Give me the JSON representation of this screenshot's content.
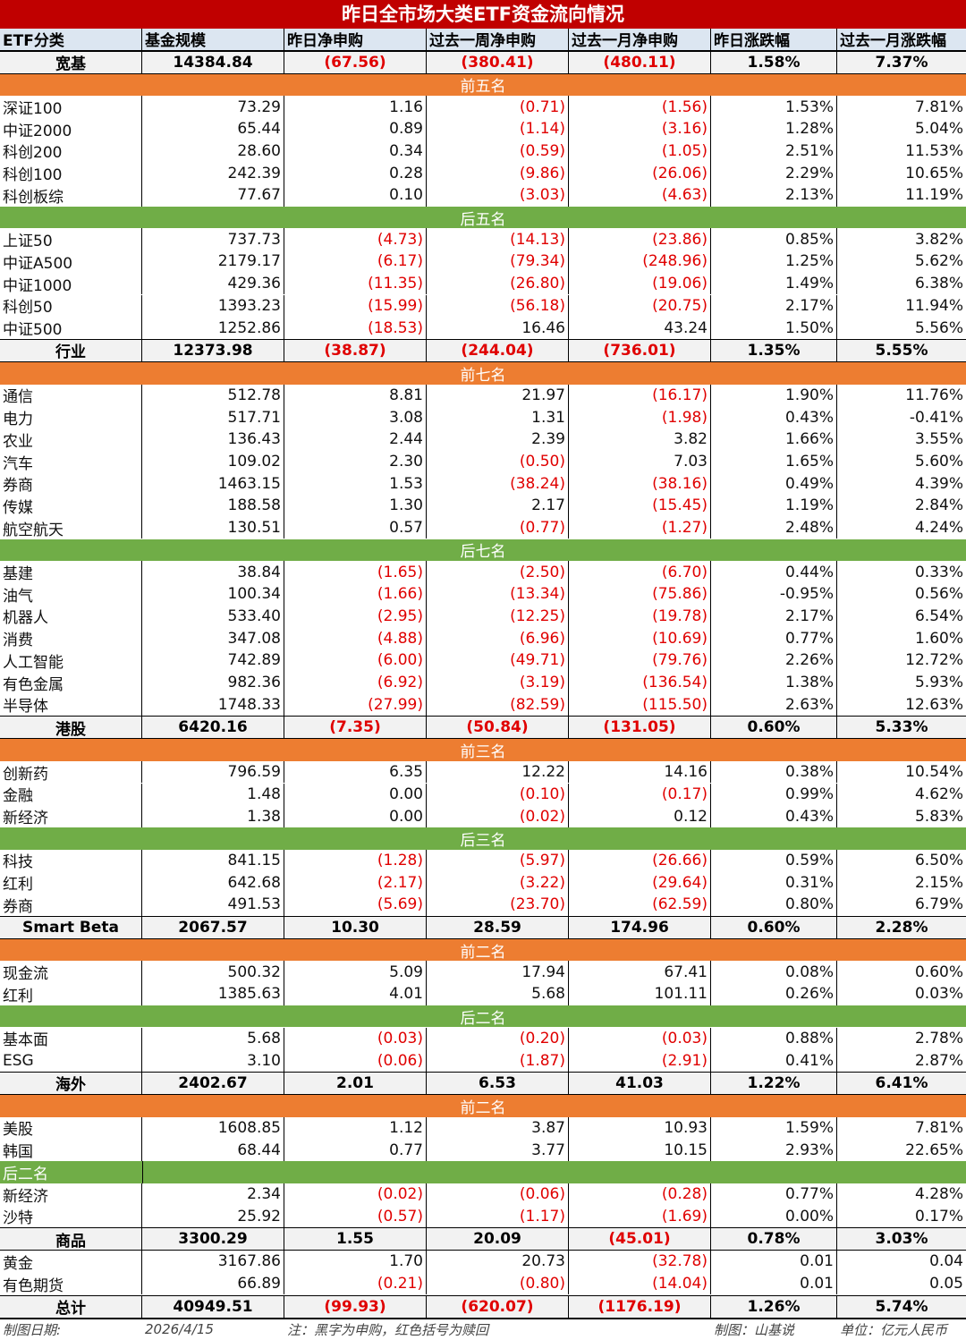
{
  "title": "昨日全市场大类ETF资金流向情况",
  "headers": [
    "ETF分类",
    "基金规模",
    "昨日净申购",
    "过去一周净申购",
    "过去一月净申购",
    "昨日涨跌幅",
    "过去一月涨跌幅"
  ],
  "groups": [
    {
      "summary": [
        "宽基",
        "14384.84",
        "(67.56)",
        "(380.41)",
        "(480.11)",
        "1.58%",
        "7.37%"
      ],
      "sections": [
        {
          "label": "前五名",
          "color": "orange",
          "rows": [
            [
              "深证100",
              "73.29",
              "1.16",
              "(0.71)",
              "(1.56)",
              "1.53%",
              "7.81%"
            ],
            [
              "中证2000",
              "65.44",
              "0.89",
              "(1.14)",
              "(3.16)",
              "1.28%",
              "5.04%"
            ],
            [
              "科创200",
              "28.60",
              "0.34",
              "(0.59)",
              "(1.05)",
              "2.51%",
              "11.53%"
            ],
            [
              "科创100",
              "242.39",
              "0.28",
              "(9.86)",
              "(26.06)",
              "2.29%",
              "10.65%"
            ],
            [
              "科创板综",
              "77.67",
              "0.10",
              "(3.03)",
              "(4.63)",
              "2.13%",
              "11.19%"
            ]
          ]
        },
        {
          "label": "后五名",
          "color": "green",
          "rows": [
            [
              "上证50",
              "737.73",
              "(4.73)",
              "(14.13)",
              "(23.86)",
              "0.85%",
              "3.82%"
            ],
            [
              "中证A500",
              "2179.17",
              "(6.17)",
              "(79.34)",
              "(248.96)",
              "1.25%",
              "5.62%"
            ],
            [
              "中证1000",
              "429.36",
              "(11.35)",
              "(26.80)",
              "(19.06)",
              "1.49%",
              "6.38%"
            ],
            [
              "科创50",
              "1393.23",
              "(15.99)",
              "(56.18)",
              "(20.75)",
              "2.17%",
              "11.94%"
            ],
            [
              "中证500",
              "1252.86",
              "(18.53)",
              "16.46",
              "43.24",
              "1.50%",
              "5.56%"
            ]
          ]
        }
      ]
    },
    {
      "summary": [
        "行业",
        "12373.98",
        "(38.87)",
        "(244.04)",
        "(736.01)",
        "1.35%",
        "5.55%"
      ],
      "sections": [
        {
          "label": "前七名",
          "color": "orange",
          "rows": [
            [
              "通信",
              "512.78",
              "8.81",
              "21.97",
              "(16.17)",
              "1.90%",
              "11.76%"
            ],
            [
              "电力",
              "517.71",
              "3.08",
              "1.31",
              "(1.98)",
              "0.43%",
              "-0.41%"
            ],
            [
              "农业",
              "136.43",
              "2.44",
              "2.39",
              "3.82",
              "1.66%",
              "3.55%"
            ],
            [
              "汽车",
              "109.02",
              "2.30",
              "(0.50)",
              "7.03",
              "1.65%",
              "5.60%"
            ],
            [
              "券商",
              "1463.15",
              "1.53",
              "(38.24)",
              "(38.16)",
              "0.49%",
              "4.39%"
            ],
            [
              "传媒",
              "188.58",
              "1.30",
              "2.17",
              "(15.45)",
              "1.19%",
              "2.84%"
            ],
            [
              "航空航天",
              "130.51",
              "0.57",
              "(0.77)",
              "(1.27)",
              "2.48%",
              "4.24%"
            ]
          ]
        },
        {
          "label": "后七名",
          "color": "green",
          "rows": [
            [
              "基建",
              "38.84",
              "(1.65)",
              "(2.50)",
              "(6.70)",
              "0.44%",
              "0.33%"
            ],
            [
              "油气",
              "100.34",
              "(1.66)",
              "(13.34)",
              "(75.86)",
              "-0.95%",
              "0.56%"
            ],
            [
              "机器人",
              "533.40",
              "(2.95)",
              "(12.25)",
              "(19.78)",
              "2.17%",
              "6.54%"
            ],
            [
              "消费",
              "347.08",
              "(4.88)",
              "(6.96)",
              "(10.69)",
              "0.77%",
              "1.60%"
            ],
            [
              "人工智能",
              "742.89",
              "(6.00)",
              "(49.71)",
              "(79.76)",
              "2.26%",
              "12.72%"
            ],
            [
              "有色金属",
              "982.36",
              "(6.92)",
              "(3.19)",
              "(136.54)",
              "1.38%",
              "5.93%"
            ],
            [
              "半导体",
              "1748.33",
              "(27.99)",
              "(82.59)",
              "(115.50)",
              "2.63%",
              "12.63%"
            ]
          ]
        }
      ]
    },
    {
      "summary": [
        "港股",
        "6420.16",
        "(7.35)",
        "(50.84)",
        "(131.05)",
        "0.60%",
        "5.33%"
      ],
      "sections": [
        {
          "label": "前三名",
          "color": "orange",
          "rows": [
            [
              "创新药",
              "796.59",
              "6.35",
              "12.22",
              "14.16",
              "0.38%",
              "10.54%"
            ],
            [
              "金融",
              "1.48",
              "0.00",
              "(0.10)",
              "(0.17)",
              "0.99%",
              "4.62%"
            ],
            [
              "新经济",
              "1.38",
              "0.00",
              "(0.02)",
              "0.12",
              "0.43%",
              "5.83%"
            ]
          ]
        },
        {
          "label": "后三名",
          "color": "green",
          "rows": [
            [
              "科技",
              "841.15",
              "(1.28)",
              "(5.97)",
              "(26.66)",
              "0.59%",
              "6.50%"
            ],
            [
              "红利",
              "642.68",
              "(2.17)",
              "(3.22)",
              "(29.64)",
              "0.31%",
              "2.15%"
            ],
            [
              "券商",
              "491.53",
              "(5.69)",
              "(23.70)",
              "(62.59)",
              "0.80%",
              "6.79%"
            ]
          ]
        }
      ]
    },
    {
      "summary": [
        "Smart Beta",
        "2067.57",
        "10.30",
        "28.59",
        "174.96",
        "0.60%",
        "2.28%"
      ],
      "sections": [
        {
          "label": "前二名",
          "color": "orange",
          "rows": [
            [
              "现金流",
              "500.32",
              "5.09",
              "17.94",
              "67.41",
              "0.08%",
              "0.60%"
            ],
            [
              "红利",
              "1385.63",
              "4.01",
              "5.68",
              "101.11",
              "0.26%",
              "0.03%"
            ]
          ]
        },
        {
          "label": "后二名",
          "color": "green",
          "rows": [
            [
              "基本面",
              "5.68",
              "(0.03)",
              "(0.20)",
              "(0.03)",
              "0.88%",
              "2.78%"
            ],
            [
              "ESG",
              "3.10",
              "(0.06)",
              "(1.87)",
              "(2.91)",
              "0.41%",
              "2.87%"
            ]
          ]
        }
      ]
    },
    {
      "summary": [
        "海外",
        "2402.67",
        "2.01",
        "6.53",
        "41.03",
        "1.22%",
        "6.41%"
      ],
      "sections": [
        {
          "label": "前二名",
          "color": "orange",
          "rows": [
            [
              "美股",
              "1608.85",
              "1.12",
              "3.87",
              "10.93",
              "1.59%",
              "7.81%"
            ],
            [
              "韩国",
              "68.44",
              "0.77",
              "3.77",
              "10.15",
              "2.93%",
              "22.65%"
            ]
          ]
        },
        {
          "label": "后二名",
          "color": "green-left",
          "rows": [
            [
              "新经济",
              "2.34",
              "(0.02)",
              "(0.06)",
              "(0.28)",
              "0.77%",
              "4.28%"
            ],
            [
              "沙特",
              "25.92",
              "(0.57)",
              "(1.17)",
              "(1.69)",
              "0.00%",
              "0.17%"
            ]
          ]
        }
      ]
    },
    {
      "summary": [
        "商品",
        "3300.29",
        "1.55",
        "20.09",
        "(45.01)",
        "0.78%",
        "3.03%"
      ],
      "sections": [
        {
          "label": "",
          "color": "none",
          "rows": [
            [
              "黄金",
              "3167.86",
              "1.70",
              "20.73",
              "(32.78)",
              "0.01",
              "0.04"
            ],
            [
              "有色期货",
              "66.89",
              "(0.21)",
              "(0.80)",
              "(14.04)",
              "0.01",
              "0.05"
            ]
          ]
        }
      ]
    }
  ],
  "total": [
    "总计",
    "40949.51",
    "(99.93)",
    "(620.07)",
    "(1176.19)",
    "1.26%",
    "5.74%"
  ],
  "footer": [
    "制图日期:",
    "2026/4/15",
    "注：黑字为申购，红色括号为赎回",
    "",
    "制图：山基说",
    "单位：亿元人民币"
  ],
  "colors": {
    "title_bg": "#c00000",
    "header_bg": "#dce6f1",
    "orange": "#ed7d31",
    "green": "#70ad47",
    "negative": "#e00000"
  }
}
